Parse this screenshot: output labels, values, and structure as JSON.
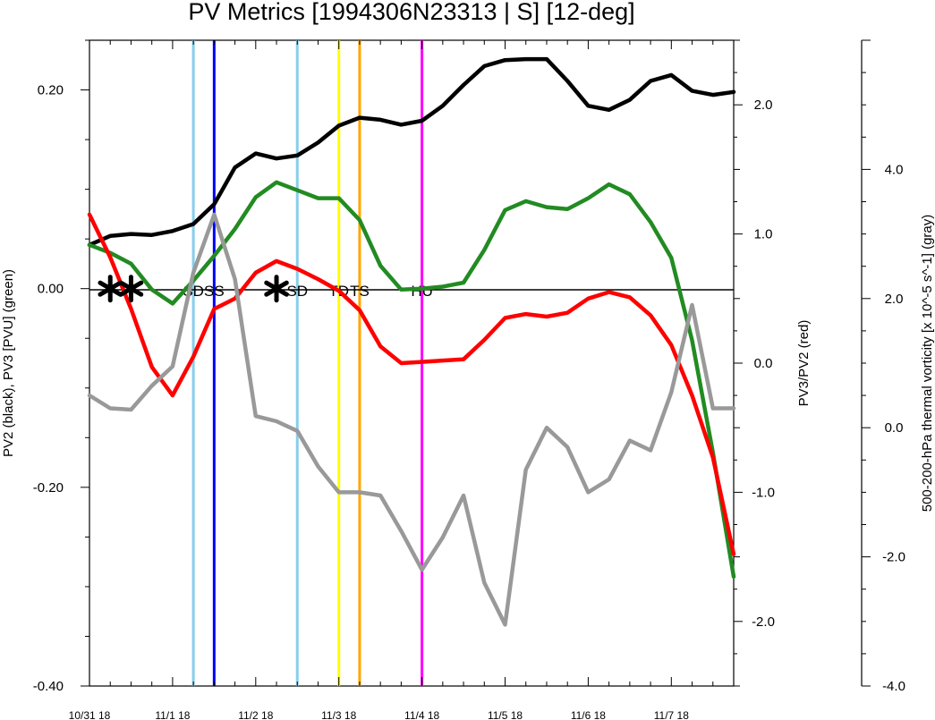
{
  "colors": {
    "pv2": "#000000",
    "pv3": "#228B22",
    "ratio": "#FF0000",
    "vort": "#999999",
    "SD": "#87CEEB",
    "SS": "#0000FF",
    "TD": "#FFFF00",
    "TS": "#FFA500",
    "HU": "#FF00FF"
  },
  "chart_data": {
    "type": "line",
    "title": "PV Metrics [1994306N23313 | S] [12-deg]",
    "x_ticks": [
      "10/31 18",
      "11/1 18",
      "11/2 18",
      "11/3 18",
      "11/4 18",
      "11/5 18",
      "11/6 18",
      "11/7 18"
    ],
    "xlim": [
      0,
      7.75
    ],
    "x": [
      0,
      0.25,
      0.5,
      0.75,
      1.0,
      1.25,
      1.5,
      1.75,
      2.0,
      2.25,
      2.5,
      2.75,
      3.0,
      3.25,
      3.5,
      3.75,
      4.0,
      4.25,
      4.5,
      4.75,
      5.0,
      5.25,
      5.5,
      5.75,
      6.0,
      6.25,
      6.5,
      6.75,
      7.0,
      7.25,
      7.5,
      7.75
    ],
    "axes": {
      "left": {
        "label": "PV2 (black), PV3 [PVU] (green)",
        "ylim": [
          -0.4,
          0.25
        ],
        "ticks": [
          "0.20",
          "0.00",
          "-0.20",
          "-0.40"
        ],
        "tick_values": [
          0.2,
          0.0,
          -0.2,
          -0.4
        ]
      },
      "right": {
        "label": "PV3/PV2 (red)",
        "ylim": [
          -2.5,
          2.5
        ],
        "ticks": [
          "2.0",
          "1.0",
          "0.0",
          "-1.0",
          "-2.0"
        ],
        "tick_values": [
          2.0,
          1.0,
          0.0,
          -1.0,
          -2.0
        ]
      },
      "far_right": {
        "label": "500-200-hPa thermal vorticity [x 10^-5 s^-1] (gray)",
        "ylim": [
          -4.0,
          6.0
        ],
        "ticks": [
          "4.0",
          "2.0",
          "0.0",
          "-2.0",
          "-4.0"
        ],
        "tick_values": [
          4.0,
          2.0,
          0.0,
          -2.0,
          -4.0
        ]
      }
    },
    "series": [
      {
        "key": "pv2",
        "axis": "left",
        "values": [
          0.044,
          0.053,
          0.055,
          0.054,
          0.058,
          0.065,
          0.085,
          0.122,
          0.136,
          0.131,
          0.134,
          0.147,
          0.164,
          0.172,
          0.17,
          0.165,
          0.169,
          0.184,
          0.205,
          0.224,
          0.23,
          0.231,
          0.231,
          0.209,
          0.184,
          0.18,
          0.19,
          0.209,
          0.215,
          0.199,
          0.195,
          0.198
        ]
      },
      {
        "key": "pv3",
        "axis": "left",
        "values": [
          0.044,
          0.036,
          0.025,
          -0.001,
          -0.015,
          0.008,
          0.033,
          0.06,
          0.092,
          0.107,
          0.099,
          0.091,
          0.091,
          0.069,
          0.023,
          -0.001,
          0.0,
          0.002,
          0.006,
          0.039,
          0.079,
          0.088,
          0.082,
          0.08,
          0.091,
          0.105,
          0.095,
          0.067,
          0.031,
          -0.052,
          -0.165,
          -0.29
        ]
      },
      {
        "key": "ratio",
        "axis": "right",
        "values": [
          1.15,
          0.82,
          0.42,
          -0.03,
          -0.25,
          0.05,
          0.42,
          0.5,
          0.7,
          0.79,
          0.73,
          0.65,
          0.56,
          0.41,
          0.13,
          0.0,
          0.01,
          0.02,
          0.03,
          0.18,
          0.35,
          0.38,
          0.36,
          0.39,
          0.5,
          0.55,
          0.51,
          0.37,
          0.14,
          -0.25,
          -0.73,
          -1.48
        ]
      },
      {
        "key": "vort",
        "axis": "far_right",
        "values": [
          0.5,
          0.3,
          0.28,
          0.65,
          0.95,
          2.4,
          3.3,
          2.3,
          0.18,
          0.1,
          -0.05,
          -0.6,
          -1.0,
          -1.0,
          -1.05,
          -1.6,
          -2.2,
          -1.7,
          -1.05,
          -2.4,
          -3.05,
          -0.65,
          0.0,
          -0.3,
          -1.0,
          -0.8,
          -0.2,
          -0.35,
          0.55,
          1.9,
          0.3,
          0.3
        ]
      }
    ],
    "stage_lines": [
      {
        "x": 1.25,
        "stage": "SD",
        "label": "SD"
      },
      {
        "x": 1.5,
        "stage": "SS",
        "label": "SS"
      },
      {
        "x": 2.5,
        "stage": "SD",
        "label": "SD"
      },
      {
        "x": 3.0,
        "stage": "TD",
        "label": "TD"
      },
      {
        "x": 3.25,
        "stage": "TS",
        "label": "TS"
      },
      {
        "x": 4.0,
        "stage": "HU",
        "label": "HU"
      }
    ],
    "asterisks": [
      0.25,
      0.5,
      2.25
    ]
  }
}
